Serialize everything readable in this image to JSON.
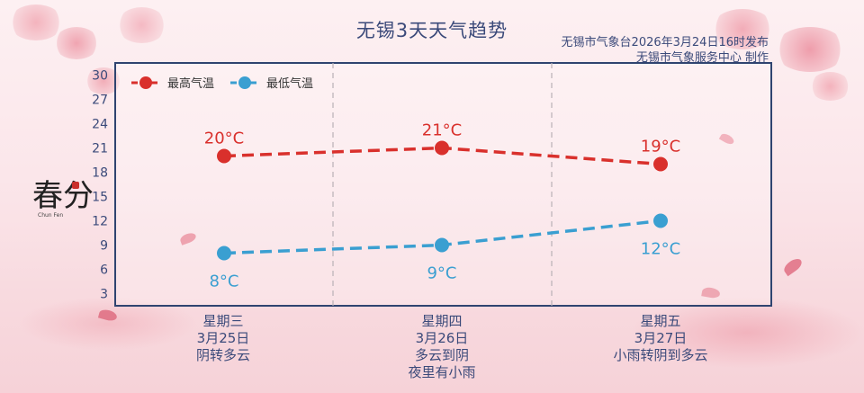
{
  "title": "无锡3天天气趋势",
  "issuer_line1": "无锡市气象台2026年3月24日16时发布",
  "issuer_line2": "无锡市气象服务中心 制作",
  "logo_text": "春分",
  "logo_en": "Chun Fen",
  "colors": {
    "high": "#d9302c",
    "low": "#3a9fd1",
    "frame": "#2f4470",
    "text": "#3b4a7a"
  },
  "chart_data": {
    "type": "line",
    "title": "无锡3天天气趋势",
    "categories": [
      "星期三",
      "星期四",
      "星期五"
    ],
    "yticks": [
      3,
      6,
      9,
      12,
      15,
      18,
      21,
      24,
      27,
      30
    ],
    "ylim": [
      1.5,
      31.5
    ],
    "grid": false,
    "legend_position": "top-left",
    "series": [
      {
        "name": "最高气温",
        "values": [
          20,
          21,
          19
        ],
        "labels": [
          "20°C",
          "21°C",
          "19°C"
        ]
      },
      {
        "name": "最低气温",
        "values": [
          8,
          9,
          12
        ],
        "labels": [
          "8°C",
          "9°C",
          "12°C"
        ]
      }
    ]
  },
  "days": [
    {
      "weekday": "星期三",
      "date": "3月25日",
      "weather": "阴转多云",
      "weather2": ""
    },
    {
      "weekday": "星期四",
      "date": "3月26日",
      "weather": "多云到阴",
      "weather2": "夜里有小雨"
    },
    {
      "weekday": "星期五",
      "date": "3月27日",
      "weather": "小雨转阴到多云",
      "weather2": ""
    }
  ]
}
